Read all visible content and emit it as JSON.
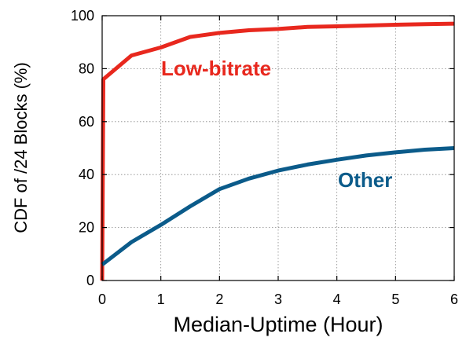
{
  "chart_data": {
    "type": "line",
    "xlabel": "Median-Uptime (Hour)",
    "ylabel": "CDF of /24 Blocks (%)",
    "xlim": [
      0,
      6
    ],
    "ylim": [
      0,
      100
    ],
    "x_ticks": [
      "0",
      "1",
      "2",
      "3",
      "4",
      "5",
      "6"
    ],
    "y_ticks": [
      "0",
      "20",
      "40",
      "60",
      "80",
      "100"
    ],
    "grid": true,
    "series": [
      {
        "name": "Low-bitrate",
        "color": "#e8281e",
        "x": [
          0,
          0.02,
          0.5,
          1.0,
          1.5,
          2.0,
          2.5,
          3.0,
          3.5,
          4.0,
          4.5,
          5.0,
          5.5,
          6.0
        ],
        "y": [
          0,
          76,
          85,
          88,
          92,
          93.5,
          94.5,
          95,
          95.8,
          96,
          96.3,
          96.6,
          96.8,
          97
        ]
      },
      {
        "name": "Other",
        "color": "#0b5b8a",
        "x": [
          0,
          0.5,
          1.0,
          1.5,
          2.0,
          2.5,
          3.0,
          3.5,
          4.0,
          4.5,
          5.0,
          5.5,
          6.0
        ],
        "y": [
          6,
          14.5,
          21,
          28,
          34.5,
          38.5,
          41.5,
          43.8,
          45.6,
          47.2,
          48.4,
          49.4,
          50
        ]
      }
    ]
  }
}
